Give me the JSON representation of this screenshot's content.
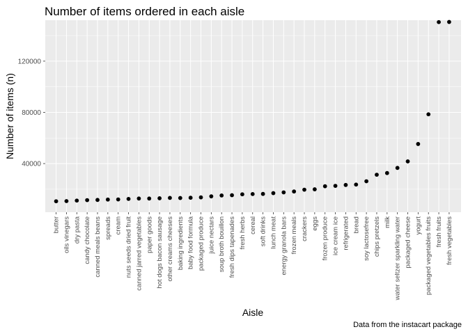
{
  "chart_data": {
    "type": "scatter",
    "title": "Number of items ordered in each aisle",
    "xlabel": "Aisle",
    "ylabel": "Number of items (n)",
    "caption": "Data from the instacart package",
    "ylim": [
      2000,
      152000
    ],
    "yticks": [
      40000,
      80000,
      120000
    ],
    "ytick_labels": [
      "40000",
      "80000",
      "120000"
    ],
    "grid": true,
    "panel_background": "#ebebeb",
    "grid_color": "#ffffff",
    "point_color": "#000000",
    "categories": [
      "butter",
      "oils vinegars",
      "dry pasta",
      "candy chocolate",
      "canned meals beans",
      "spreads",
      "cream",
      "nuts seeds dried fruit",
      "canned jarred vegetables",
      "paper goods",
      "hot dogs bacon sausage",
      "other creams cheeses",
      "baking ingredients",
      "baby food formula",
      "packaged produce",
      "juice nectars",
      "soup broth bouillon",
      "fresh dips tapenades",
      "fresh herbs",
      "cereal",
      "soft drinks",
      "lunch meat",
      "energy granola bars",
      "frozen meals",
      "crackers",
      "eggs",
      "frozen produce",
      "ice cream ice",
      "refrigerated",
      "bread",
      "soy lactosefree",
      "chips pretzels",
      "milk",
      "water seltzer sparkling water",
      "packaged cheese",
      "yogurt",
      "packaged vegetables fruits",
      "fresh fruits",
      "fresh vegetables"
    ],
    "values": [
      10575,
      10700,
      11100,
      11450,
      11600,
      11900,
      12000,
      12400,
      12700,
      12700,
      12900,
      13200,
      13100,
      13300,
      13600,
      14400,
      15100,
      15300,
      16000,
      16200,
      16300,
      16900,
      17500,
      18200,
      19600,
      19900,
      22300,
      22600,
      23300,
      23600,
      26200,
      31300,
      32600,
      36600,
      41700,
      55300,
      78500,
      150500,
      150600
    ]
  }
}
